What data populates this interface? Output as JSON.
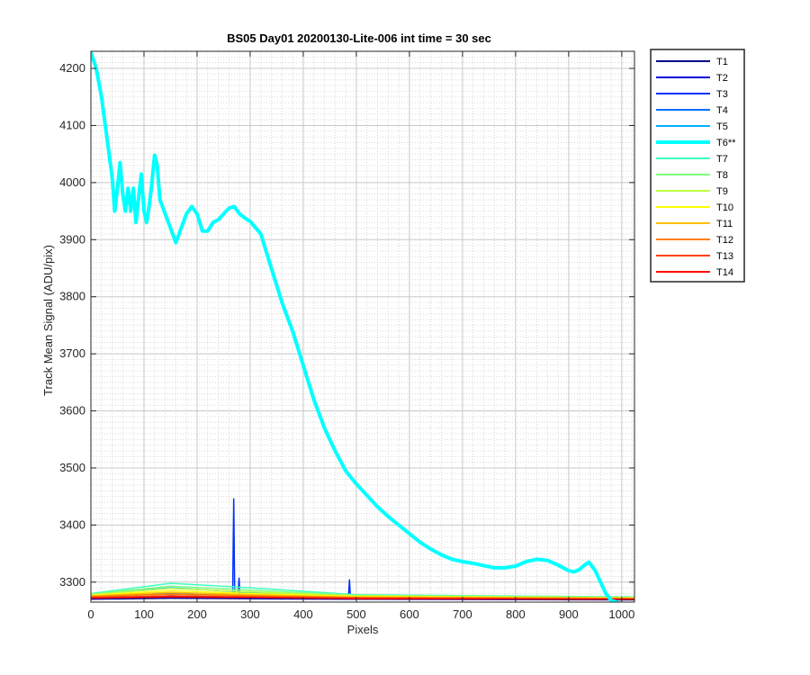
{
  "chart_data": {
    "type": "line",
    "title": "BS05 Day01 20200130-Lite-006 int time = 30 sec",
    "xlabel": "Pixels",
    "ylabel": "Track Mean Signal (ADU/pix)",
    "xlim": [
      0,
      1024
    ],
    "ylim": [
      3265,
      4230
    ],
    "xticks": [
      0,
      100,
      200,
      300,
      400,
      500,
      600,
      700,
      800,
      900,
      1000
    ],
    "yticks": [
      3300,
      3400,
      3500,
      3600,
      3700,
      3800,
      3900,
      4000,
      4100,
      4200
    ],
    "grid": true,
    "minor_grid": true,
    "legend_position": "outside-top-right",
    "series": [
      {
        "name": "T1",
        "color": "#00008f",
        "points": [
          [
            0,
            3270
          ],
          [
            150,
            3272
          ],
          [
            300,
            3271
          ],
          [
            500,
            3270
          ],
          [
            1024,
            3269
          ]
        ]
      },
      {
        "name": "T2",
        "color": "#0000df",
        "points": [
          [
            0,
            3271
          ],
          [
            150,
            3274
          ],
          [
            300,
            3272
          ],
          [
            500,
            3271
          ],
          [
            1024,
            3270
          ]
        ]
      },
      {
        "name": "T3",
        "color": "#0030ff",
        "points": [
          [
            0,
            3272
          ],
          [
            150,
            3276
          ],
          [
            267,
            3274
          ],
          [
            269,
            3446
          ],
          [
            271,
            3274
          ],
          [
            277,
            3275
          ],
          [
            279,
            3307
          ],
          [
            281,
            3275
          ],
          [
            485,
            3272
          ],
          [
            487,
            3304
          ],
          [
            489,
            3272
          ],
          [
            1024,
            3271
          ]
        ]
      },
      {
        "name": "T4",
        "color": "#0070ff",
        "points": [
          [
            0,
            3274
          ],
          [
            150,
            3280
          ],
          [
            300,
            3276
          ],
          [
            500,
            3273
          ],
          [
            1024,
            3272
          ]
        ]
      },
      {
        "name": "T5",
        "color": "#00b0ff",
        "points": [
          [
            0,
            3278
          ],
          [
            150,
            3290
          ],
          [
            300,
            3282
          ],
          [
            500,
            3275
          ],
          [
            1024,
            3273
          ]
        ]
      },
      {
        "name": "T6**",
        "color": "#00ffff",
        "emphasized": true,
        "points": [
          [
            0,
            4228
          ],
          [
            10,
            4200
          ],
          [
            20,
            4150
          ],
          [
            30,
            4080
          ],
          [
            40,
            4010
          ],
          [
            45,
            3950
          ],
          [
            50,
            3990
          ],
          [
            55,
            4035
          ],
          [
            60,
            3980
          ],
          [
            65,
            3950
          ],
          [
            70,
            3990
          ],
          [
            75,
            3950
          ],
          [
            80,
            3990
          ],
          [
            85,
            3930
          ],
          [
            90,
            3975
          ],
          [
            95,
            4015
          ],
          [
            100,
            3950
          ],
          [
            105,
            3930
          ],
          [
            110,
            3960
          ],
          [
            115,
            4000
          ],
          [
            120,
            4048
          ],
          [
            125,
            4030
          ],
          [
            130,
            3970
          ],
          [
            140,
            3945
          ],
          [
            150,
            3920
          ],
          [
            160,
            3895
          ],
          [
            170,
            3920
          ],
          [
            180,
            3945
          ],
          [
            190,
            3958
          ],
          [
            200,
            3945
          ],
          [
            210,
            3915
          ],
          [
            220,
            3915
          ],
          [
            230,
            3930
          ],
          [
            240,
            3935
          ],
          [
            250,
            3945
          ],
          [
            260,
            3955
          ],
          [
            270,
            3958
          ],
          [
            280,
            3945
          ],
          [
            290,
            3938
          ],
          [
            300,
            3932
          ],
          [
            320,
            3910
          ],
          [
            340,
            3850
          ],
          [
            360,
            3790
          ],
          [
            380,
            3740
          ],
          [
            400,
            3680
          ],
          [
            420,
            3620
          ],
          [
            440,
            3570
          ],
          [
            460,
            3530
          ],
          [
            480,
            3495
          ],
          [
            500,
            3472
          ],
          [
            520,
            3452
          ],
          [
            540,
            3432
          ],
          [
            560,
            3415
          ],
          [
            580,
            3400
          ],
          [
            600,
            3385
          ],
          [
            620,
            3370
          ],
          [
            640,
            3358
          ],
          [
            660,
            3348
          ],
          [
            680,
            3340
          ],
          [
            700,
            3336
          ],
          [
            720,
            3333
          ],
          [
            740,
            3329
          ],
          [
            760,
            3325
          ],
          [
            780,
            3325
          ],
          [
            800,
            3328
          ],
          [
            820,
            3336
          ],
          [
            840,
            3340
          ],
          [
            860,
            3338
          ],
          [
            880,
            3330
          ],
          [
            900,
            3320
          ],
          [
            910,
            3318
          ],
          [
            920,
            3322
          ],
          [
            930,
            3330
          ],
          [
            938,
            3335
          ],
          [
            950,
            3320
          ],
          [
            960,
            3300
          ],
          [
            970,
            3280
          ],
          [
            980,
            3268
          ],
          [
            1000,
            3262
          ],
          [
            1024,
            3258
          ]
        ]
      },
      {
        "name": "T7",
        "color": "#40ffbf",
        "points": [
          [
            0,
            3280
          ],
          [
            150,
            3298
          ],
          [
            300,
            3290
          ],
          [
            500,
            3278
          ],
          [
            1024,
            3274
          ]
        ]
      },
      {
        "name": "T8",
        "color": "#80ff80",
        "points": [
          [
            0,
            3279
          ],
          [
            150,
            3293
          ],
          [
            300,
            3286
          ],
          [
            500,
            3277
          ],
          [
            1024,
            3273
          ]
        ]
      },
      {
        "name": "T9",
        "color": "#bfff40",
        "points": [
          [
            0,
            3278
          ],
          [
            150,
            3289
          ],
          [
            300,
            3283
          ],
          [
            500,
            3276
          ],
          [
            1024,
            3273
          ]
        ]
      },
      {
        "name": "T10",
        "color": "#ffff00",
        "points": [
          [
            0,
            3277
          ],
          [
            150,
            3285
          ],
          [
            300,
            3280
          ],
          [
            500,
            3275
          ],
          [
            1024,
            3272
          ]
        ]
      },
      {
        "name": "T11",
        "color": "#ffbf00",
        "points": [
          [
            0,
            3276
          ],
          [
            150,
            3282
          ],
          [
            300,
            3278
          ],
          [
            500,
            3274
          ],
          [
            1024,
            3272
          ]
        ]
      },
      {
        "name": "T12",
        "color": "#ff8000",
        "points": [
          [
            0,
            3275
          ],
          [
            150,
            3279
          ],
          [
            300,
            3276
          ],
          [
            500,
            3273
          ],
          [
            1024,
            3271
          ]
        ]
      },
      {
        "name": "T13",
        "color": "#ff4000",
        "points": [
          [
            0,
            3273
          ],
          [
            150,
            3276
          ],
          [
            300,
            3274
          ],
          [
            500,
            3272
          ],
          [
            1024,
            3270
          ]
        ]
      },
      {
        "name": "T14",
        "color": "#ff0000",
        "points": [
          [
            0,
            3272
          ],
          [
            150,
            3274
          ],
          [
            300,
            3273
          ],
          [
            500,
            3271
          ],
          [
            1024,
            3270
          ]
        ]
      }
    ]
  }
}
